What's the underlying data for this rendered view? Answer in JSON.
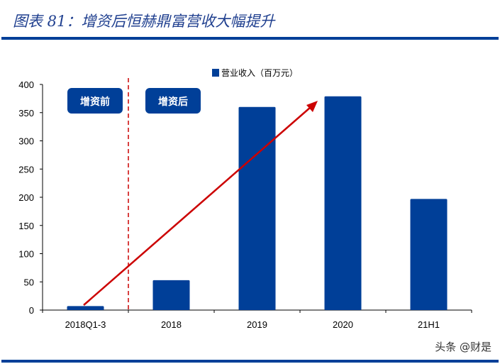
{
  "title": "图表 81：增资后恒赫鼎富营收大幅提升",
  "watermark": "头条 @财是",
  "annotations": {
    "before": "增资前",
    "after": "增资后"
  },
  "colors": {
    "bar": "#003f98",
    "arrow": "#cc0000",
    "divider": "#cc0000",
    "rule": "#003f98"
  },
  "chart_data": {
    "type": "bar",
    "title": "",
    "xlabel": "",
    "ylabel": "",
    "categories": [
      "2018Q1-3",
      "2018",
      "2019",
      "2020",
      "21H1"
    ],
    "series": [
      {
        "name": "营业收入（百万元）",
        "values": [
          7,
          53,
          360,
          379,
          197
        ]
      }
    ],
    "ylim": [
      0,
      400
    ],
    "yticks": [
      0,
      50,
      100,
      150,
      200,
      250,
      300,
      350,
      400
    ],
    "grid": false,
    "legend": "top-center",
    "annotations": [
      "dashed vertical divider between 2018Q1-3 and 2018",
      "red upward trend arrow from 2018Q1-3 to 2020"
    ]
  }
}
